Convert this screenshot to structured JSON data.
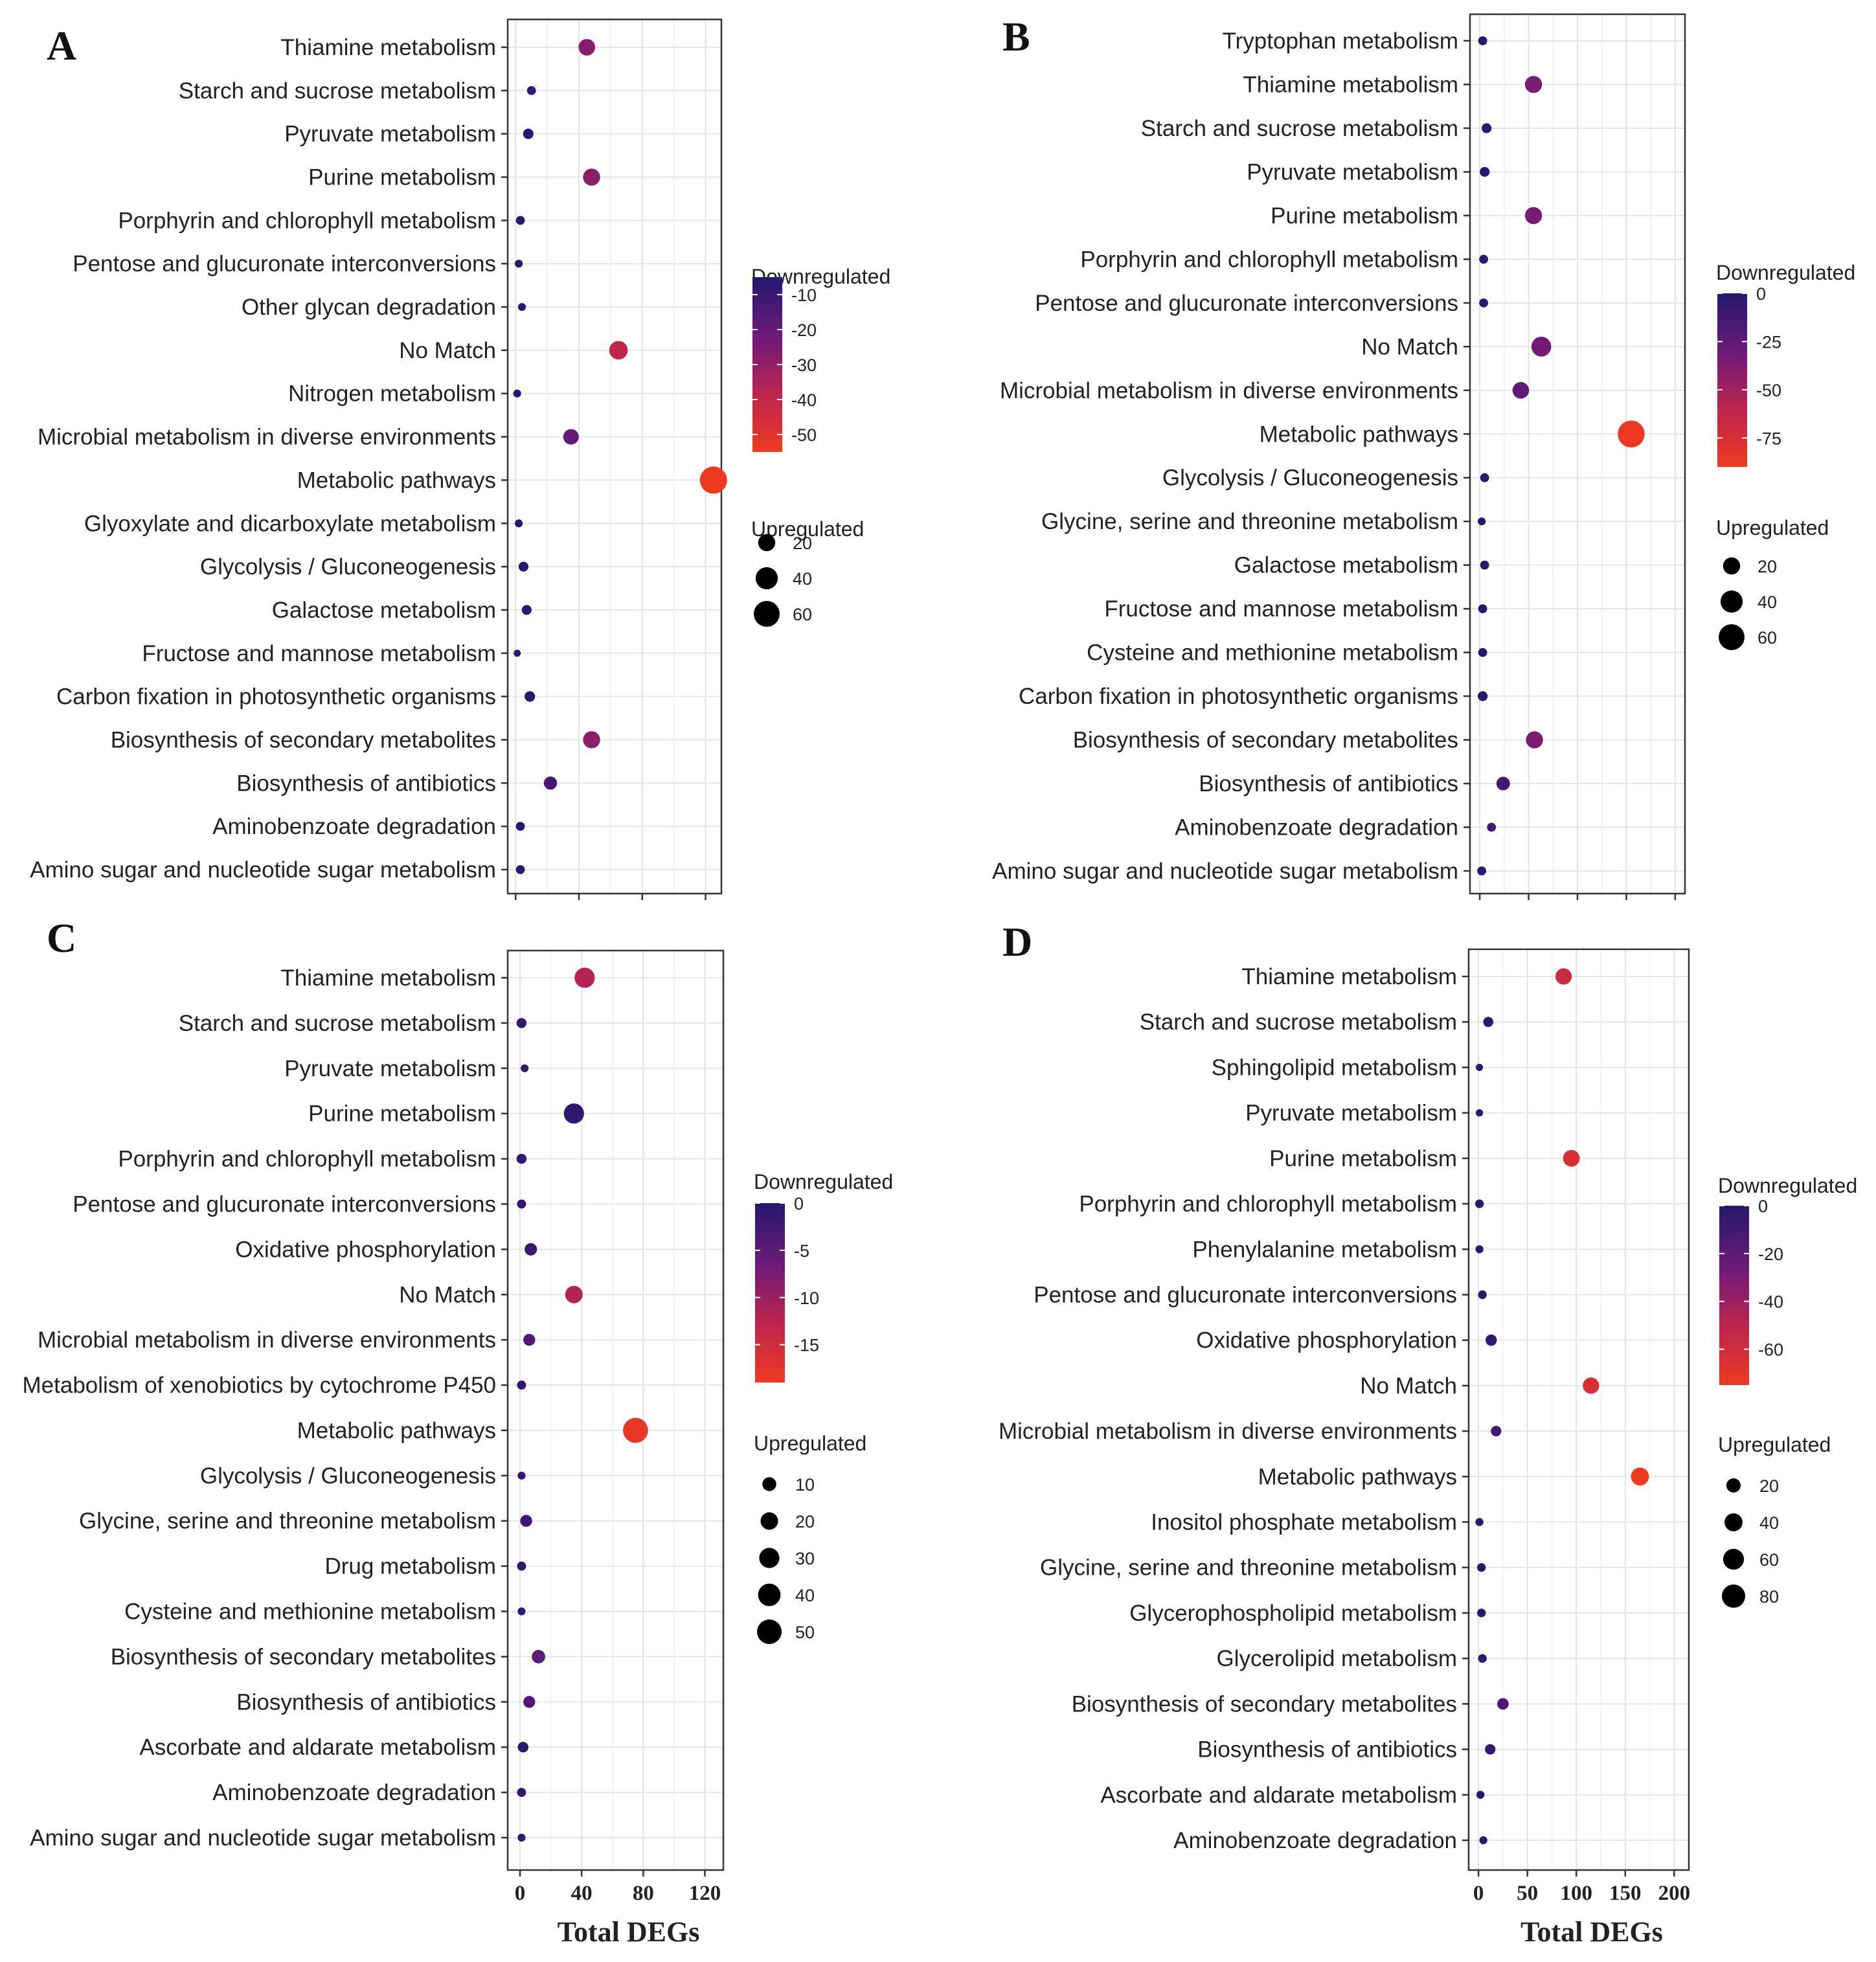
{
  "x_axis_title": "Total DEGs",
  "legend_color_title": "Downregulated",
  "legend_size_title": "Upregulated",
  "chart_data": [
    {
      "panel": "A",
      "type": "scatter",
      "xlabel": "Total DEGs",
      "xlim": [
        -5,
        130
      ],
      "xticks": [
        0,
        40,
        80,
        120
      ],
      "show_xtick_labels": false,
      "color_legend": {
        "title": "Downregulated",
        "range": [
          -55,
          -5
        ],
        "ticks": [
          -10,
          -20,
          -30,
          -40,
          -50
        ]
      },
      "size_legend": {
        "title": "Upregulated",
        "ticks": [
          20,
          40,
          60
        ],
        "max": 60
      },
      "categories": [
        "Thiamine metabolism",
        "Starch and sucrose metabolism",
        "Pyruvate metabolism",
        "Purine metabolism",
        "Porphyrin and chlorophyll metabolism",
        "Pentose and glucuronate interconversions",
        "Other glycan degradation",
        "No Match",
        "Nitrogen metabolism",
        "Microbial metabolism in diverse environments",
        "Metabolic pathways",
        "Glyoxylate and dicarboxylate metabolism",
        "Glycolysis / Gluconeogenesis",
        "Galactose metabolism",
        "Fructose and mannose metabolism",
        "Carbon fixation in photosynthetic organisms",
        "Biosynthesis of secondary metabolites",
        "Biosynthesis of antibiotics",
        "Aminobenzoate degradation",
        "Amino sugar and nucleotide sugar metabolism"
      ],
      "total": [
        45,
        10,
        8,
        48,
        3,
        2,
        4,
        65,
        1,
        35,
        125,
        2,
        5,
        7,
        1,
        9,
        48,
        22,
        3,
        3
      ],
      "up": [
        18,
        2,
        4,
        20,
        2,
        1,
        1,
        25,
        1,
        15,
        68,
        1,
        3,
        3,
        0.5,
        4,
        20,
        9,
        2,
        2
      ],
      "down": [
        -27,
        -8,
        -4,
        -28,
        -2,
        -1,
        -3,
        -40,
        -1,
        -20,
        -57,
        -1,
        -2,
        -4,
        -1,
        -5,
        -28,
        -13,
        -1,
        -2
      ]
    },
    {
      "panel": "B",
      "type": "scatter",
      "xlabel": "Total DEGs",
      "xlim": [
        -10,
        210
      ],
      "xticks": [
        0,
        50,
        100,
        150,
        200
      ],
      "show_xtick_labels": false,
      "color_legend": {
        "title": "Downregulated",
        "range": [
          -90,
          0
        ],
        "ticks": [
          0,
          -25,
          -50,
          -75
        ]
      },
      "size_legend": {
        "title": "Upregulated",
        "ticks": [
          20,
          40,
          60
        ],
        "max": 60
      },
      "categories": [
        "Tryptophan metabolism",
        "Thiamine metabolism",
        "Starch and sucrose metabolism",
        "Pyruvate metabolism",
        "Purine metabolism",
        "Porphyrin and chlorophyll metabolism",
        "Pentose and glucuronate interconversions",
        "No Match",
        "Microbial metabolism in diverse environments",
        "Metabolic pathways",
        "Glycolysis / Gluconeogenesis",
        "Glycine, serine and threonine metabolism",
        "Galactose metabolism",
        "Fructose and mannose metabolism",
        "Cysteine and methionine metabolism",
        "Carbon fixation in photosynthetic organisms",
        "Biosynthesis of secondary metabolites",
        "Biosynthesis of antibiotics",
        "Aminobenzoate degradation",
        "Amino sugar and nucleotide sugar metabolism"
      ],
      "total": [
        3,
        55,
        7,
        5,
        55,
        4,
        4,
        63,
        42,
        155,
        5,
        2,
        5,
        3,
        3,
        3,
        56,
        24,
        12,
        2
      ],
      "up": [
        2,
        20,
        3,
        3,
        20,
        2,
        2,
        30,
        18,
        66,
        2,
        1,
        2,
        2,
        2,
        3,
        20,
        10,
        2,
        2
      ],
      "down": [
        -1,
        -35,
        -4,
        -2,
        -35,
        -2,
        -2,
        -33,
        -24,
        -89,
        -3,
        -1,
        -3,
        -1,
        -1,
        -1,
        -36,
        -14,
        -10,
        -1
      ]
    },
    {
      "panel": "C",
      "type": "scatter",
      "xlabel": "Total DEGs",
      "xlim": [
        -8,
        132
      ],
      "xticks": [
        0,
        40,
        80,
        120
      ],
      "show_xtick_labels": true,
      "color_legend": {
        "title": "Downregulated",
        "range": [
          -19,
          0
        ],
        "ticks": [
          0,
          -5,
          -10,
          -15
        ]
      },
      "size_legend": {
        "title": "Upregulated",
        "ticks": [
          10,
          20,
          30,
          40,
          50
        ],
        "max": 50
      },
      "categories": [
        "Thiamine metabolism",
        "Starch and sucrose metabolism",
        "Pyruvate metabolism",
        "Purine metabolism",
        "Porphyrin and chlorophyll metabolism",
        "Pentose and glucuronate interconversions",
        "Oxidative phosphorylation",
        "No Match",
        "Microbial metabolism in diverse environments",
        "Metabolism of xenobiotics by cytochrome P450",
        "Metabolic pathways",
        "Glycolysis / Gluconeogenesis",
        "Glycine, serine and threonine metabolism",
        "Drug metabolism",
        "Cysteine and methionine metabolism",
        "Biosynthesis of secondary metabolites",
        "Biosynthesis of antibiotics",
        "Ascorbate and aldarate metabolism",
        "Aminobenzoate degradation",
        "Amino sugar and nucleotide sugar metabolism"
      ],
      "total": [
        42,
        1,
        3,
        35,
        1,
        1,
        7,
        35,
        6,
        1,
        75,
        1,
        4,
        1,
        1,
        12,
        6,
        2,
        1,
        1
      ],
      "up": [
        30,
        3,
        1,
        30,
        3,
        2,
        7,
        20,
        6,
        2,
        52,
        1,
        6,
        2,
        1,
        9,
        6,
        4,
        2,
        1
      ],
      "down": [
        -12,
        -1,
        -1,
        -1,
        -1,
        -1,
        -2,
        -12,
        -4,
        -1,
        -18,
        -1,
        -2,
        -1,
        -1,
        -5,
        -4,
        -1,
        -1,
        -1
      ]
    },
    {
      "panel": "D",
      "type": "scatter",
      "xlabel": "Total DEGs",
      "xlim": [
        -10,
        215
      ],
      "xticks": [
        0,
        50,
        100,
        150,
        200
      ],
      "show_xtick_labels": true,
      "color_legend": {
        "title": "Downregulated",
        "range": [
          -75,
          0
        ],
        "ticks": [
          0,
          -20,
          -40,
          -60
        ]
      },
      "size_legend": {
        "title": "Upregulated",
        "ticks": [
          20,
          40,
          60,
          80
        ],
        "max": 80
      },
      "categories": [
        "Thiamine metabolism",
        "Starch and sucrose metabolism",
        "Sphingolipid metabolism",
        "Pyruvate metabolism",
        "Purine metabolism",
        "Porphyrin and chlorophyll metabolism",
        "Phenylalanine metabolism",
        "Pentose and glucuronate interconversions",
        "Oxidative phosphorylation",
        "No Match",
        "Microbial metabolism in diverse environments",
        "Metabolic pathways",
        "Inositol phosphate metabolism",
        "Glycine, serine and threonine metabolism",
        "Glycerophospholipid metabolism",
        "Glycerolipid metabolism",
        "Biosynthesis of secondary metabolites",
        "Biosynthesis of antibiotics",
        "Ascorbate and aldarate metabolism",
        "Aminobenzoate degradation"
      ],
      "total": [
        87,
        10,
        1,
        1,
        95,
        1,
        1,
        4,
        13,
        115,
        18,
        165,
        1,
        3,
        3,
        4,
        25,
        12,
        2,
        5
      ],
      "up": [
        30,
        6,
        1,
        1,
        32,
        3,
        2,
        3,
        9,
        30,
        7,
        40,
        2,
        3,
        3,
        3,
        10,
        7,
        2,
        2
      ],
      "down": [
        -57,
        -4,
        -1,
        -1,
        -63,
        -1,
        -1,
        -1,
        -4,
        -63,
        -11,
        -75,
        -1,
        -1,
        -1,
        -1,
        -15,
        -5,
        -1,
        -3
      ]
    }
  ]
}
